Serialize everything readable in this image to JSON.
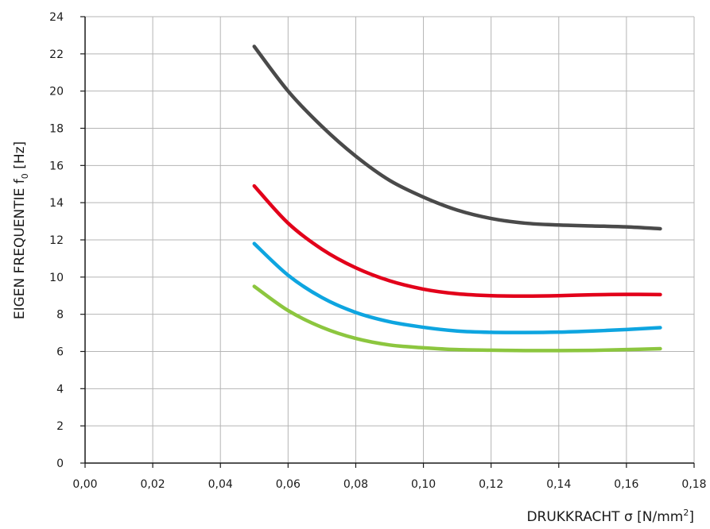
{
  "chart_data": {
    "type": "line",
    "title": "",
    "xlabel": "DRUKKRACHT σ [N/mm",
    "xlabel_sup": "2",
    "xlabel_end": "]",
    "ylabel": "EIGEN FREQUENTIE f",
    "ylabel_sub": "0",
    "ylabel_end": " [Hz]",
    "xlim": [
      0,
      0.18
    ],
    "ylim": [
      0,
      24
    ],
    "xticks": [
      0,
      0.02,
      0.04,
      0.06,
      0.08,
      0.1,
      0.12,
      0.14,
      0.16,
      0.18
    ],
    "xtick_labels": [
      "0,00",
      "0,02",
      "0,04",
      "0,06",
      "0,08",
      "0,10",
      "0,12",
      "0,14",
      "0,16",
      "0,18"
    ],
    "yticks": [
      0,
      2,
      4,
      6,
      8,
      10,
      12,
      14,
      16,
      18,
      20,
      22,
      24
    ],
    "ytick_labels": [
      "0",
      "2",
      "4",
      "6",
      "8",
      "10",
      "12",
      "14",
      "16",
      "18",
      "20",
      "22",
      "24"
    ],
    "grid": true,
    "legend": "none",
    "x": [
      0.05,
      0.06,
      0.07,
      0.08,
      0.09,
      0.1,
      0.11,
      0.12,
      0.13,
      0.14,
      0.15,
      0.16,
      0.17
    ],
    "series": [
      {
        "color": "#4a4a4a",
        "values": [
          22.4,
          20.0,
          18.1,
          16.5,
          15.2,
          14.3,
          13.6,
          13.15,
          12.9,
          12.8,
          12.75,
          12.7,
          12.6
        ]
      },
      {
        "color": "#e2001a",
        "values": [
          14.9,
          12.9,
          11.5,
          10.5,
          9.8,
          9.35,
          9.1,
          9.0,
          8.98,
          9.0,
          9.05,
          9.07,
          9.06
        ]
      },
      {
        "color": "#0ea5e0",
        "values": [
          11.8,
          10.1,
          8.9,
          8.1,
          7.6,
          7.3,
          7.1,
          7.03,
          7.02,
          7.04,
          7.1,
          7.18,
          7.28
        ]
      },
      {
        "color": "#8cc63f",
        "values": [
          9.5,
          8.2,
          7.3,
          6.7,
          6.35,
          6.2,
          6.1,
          6.07,
          6.05,
          6.05,
          6.06,
          6.1,
          6.15
        ]
      }
    ]
  }
}
